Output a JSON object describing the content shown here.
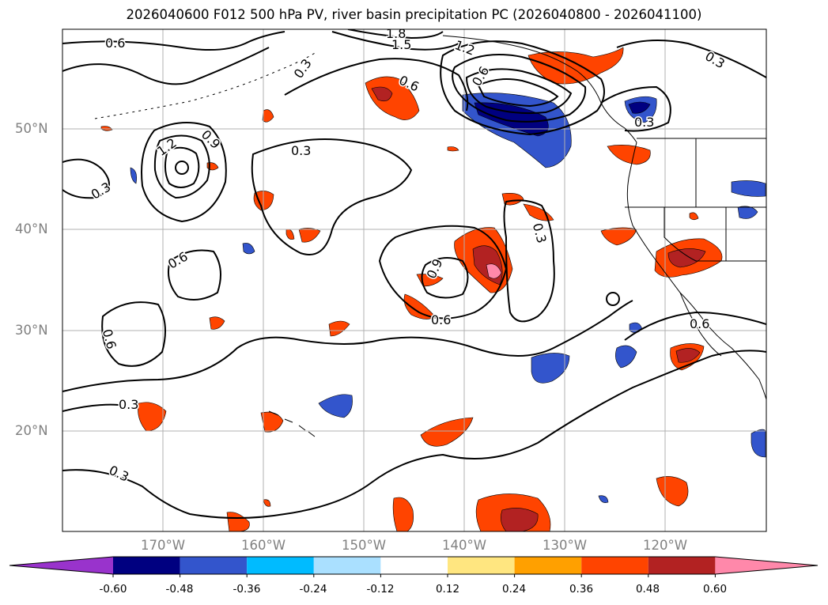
{
  "title": "2026040600 F012 500 hPa PV, river basin precipitation PC (2026040800 - 2026041100)",
  "map": {
    "lon_range": [
      -180,
      -110
    ],
    "lat_range": [
      10,
      60
    ],
    "grid": true,
    "lat_labels": [
      "50°N",
      "40°N",
      "30°N",
      "20°N"
    ],
    "lon_labels": [
      "170°W",
      "160°W",
      "150°W",
      "140°W",
      "130°W",
      "120°W"
    ],
    "contour_labels": [
      "0.6",
      "0.3",
      "1.8",
      "1.5",
      "1.2",
      "0.6",
      "1.2",
      "0.9",
      "0.3",
      "0.3",
      "0.3",
      "0.6",
      "0.9",
      "0.6",
      "0.3",
      "0.6",
      "0.6",
      "0.3",
      "0.3",
      "0.6",
      "0.3"
    ],
    "colors": {
      "contour": "#000000",
      "grid": "#b0b0b0",
      "coastline": "#000000"
    }
  },
  "colorbar": {
    "orientation": "horizontal",
    "extend": "both",
    "tick_labels": [
      "-0.60",
      "-0.48",
      "-0.36",
      "-0.24",
      "-0.12",
      "0.12",
      "0.24",
      "0.36",
      "0.48",
      "0.60"
    ],
    "colors": [
      "#9933cc",
      "#000080",
      "#3355cc",
      "#00bbff",
      "#aae0ff",
      "#ffffff",
      "#ffe680",
      "#ffa000",
      "#ff4400",
      "#b22222",
      "#ff88aa"
    ]
  }
}
